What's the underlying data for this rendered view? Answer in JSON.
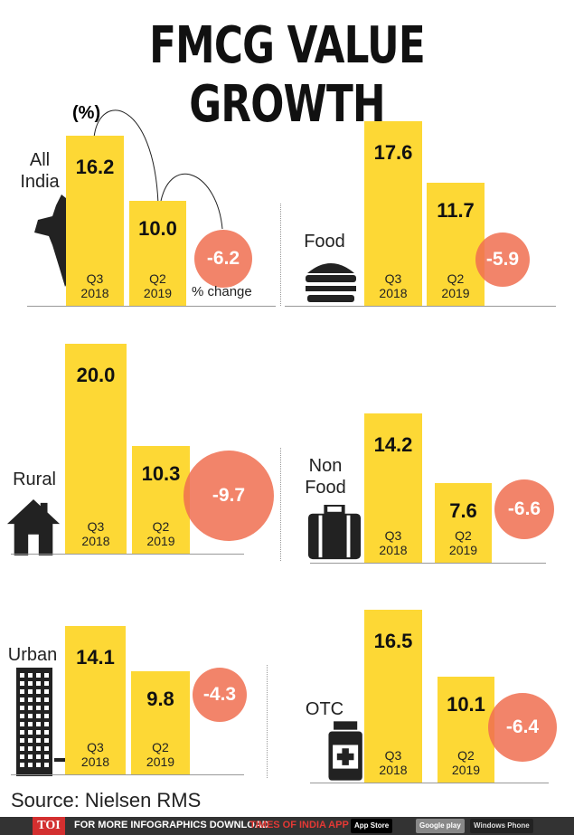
{
  "chart_data": {
    "type": "bar",
    "title": "FMCG VALUE GROWTH",
    "unit_label": "(%)",
    "categories": [
      "Q3\n2018",
      "Q2\n2019"
    ],
    "change_label": "% change",
    "panels": [
      {
        "name": "All India",
        "values": [
          16.2,
          10.0
        ],
        "change": -6.2
      },
      {
        "name": "Food",
        "values": [
          17.6,
          11.7
        ],
        "change": -5.9
      },
      {
        "name": "Rural",
        "values": [
          20.0,
          10.3
        ],
        "change": -9.7
      },
      {
        "name": "Non Food",
        "values": [
          14.2,
          7.6
        ],
        "change": -6.6
      },
      {
        "name": "Urban",
        "values": [
          14.1,
          9.8
        ],
        "change": -4.3
      },
      {
        "name": "OTC",
        "values": [
          16.5,
          10.1
        ],
        "change": -6.4
      }
    ],
    "period_labels": [
      [
        "Q3",
        "2018"
      ],
      [
        "Q2",
        "2019"
      ]
    ],
    "bar_color": "#fdd835",
    "change_color": "#f06e50"
  },
  "source": "Source: Nielsen RMS",
  "footer": {
    "brand": "TOI",
    "text": "FOR MORE  INFOGRAPHICS DOWNLOAD",
    "app": "TIMES OF INDIA  APP",
    "app_store": "App Store",
    "google_play": "Google play",
    "windows": "Windows Phone"
  }
}
